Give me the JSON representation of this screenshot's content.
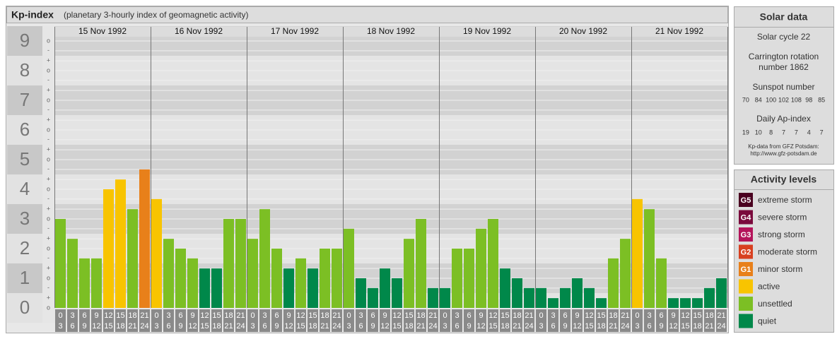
{
  "header": {
    "title": "Kp-index",
    "subtitle": "(planetary 3-hourly index of geomagnetic activity)"
  },
  "chart_data": {
    "type": "bar",
    "ylim": [
      -0.5,
      9.5
    ],
    "yticks": [
      0,
      1,
      2,
      3,
      4,
      5,
      6,
      7,
      8,
      9
    ],
    "minor_yticks": [
      {
        "value": 0,
        "label": "o"
      },
      {
        "value": 0.33,
        "label": "+"
      },
      {
        "value": 0.67,
        "label": "-"
      },
      {
        "value": 1,
        "label": "o"
      },
      {
        "value": 1.33,
        "label": "+"
      },
      {
        "value": 1.67,
        "label": "-"
      },
      {
        "value": 2,
        "label": "o"
      },
      {
        "value": 2.33,
        "label": "+"
      },
      {
        "value": 2.67,
        "label": "-"
      },
      {
        "value": 3,
        "label": "o"
      },
      {
        "value": 3.33,
        "label": "+"
      },
      {
        "value": 3.67,
        "label": "-"
      },
      {
        "value": 4,
        "label": "o"
      },
      {
        "value": 4.33,
        "label": "+"
      },
      {
        "value": 4.67,
        "label": "-"
      },
      {
        "value": 5,
        "label": "o"
      },
      {
        "value": 5.33,
        "label": "+"
      },
      {
        "value": 5.67,
        "label": "-"
      },
      {
        "value": 6,
        "label": "o"
      },
      {
        "value": 6.33,
        "label": "+"
      },
      {
        "value": 6.67,
        "label": "-"
      },
      {
        "value": 7,
        "label": "o"
      },
      {
        "value": 7.33,
        "label": "+"
      },
      {
        "value": 7.67,
        "label": "-"
      },
      {
        "value": 8,
        "label": "o"
      },
      {
        "value": 8.33,
        "label": "+"
      },
      {
        "value": 8.67,
        "label": "-"
      },
      {
        "value": 9,
        "label": "o"
      }
    ],
    "intervals": [
      [
        "0",
        "3"
      ],
      [
        "3",
        "6"
      ],
      [
        "6",
        "9"
      ],
      [
        "9",
        "12"
      ],
      [
        "12",
        "15"
      ],
      [
        "15",
        "18"
      ],
      [
        "18",
        "21"
      ],
      [
        "21",
        "24"
      ]
    ],
    "days": [
      {
        "date": "15 Nov 1992",
        "values": [
          3,
          2.33,
          1.67,
          1.67,
          4,
          4.33,
          3.33,
          4.67
        ],
        "colors": [
          "#7cbf24",
          "#7cbf24",
          "#7cbf24",
          "#7cbf24",
          "#f8c400",
          "#f8c400",
          "#7cbf24",
          "#e8801a"
        ]
      },
      {
        "date": "16 Nov 1992",
        "values": [
          3.67,
          2.33,
          2,
          1.67,
          1.33,
          1.33,
          3,
          3
        ],
        "colors": [
          "#f8c400",
          "#7cbf24",
          "#7cbf24",
          "#7cbf24",
          "#00884a",
          "#00884a",
          "#7cbf24",
          "#7cbf24"
        ]
      },
      {
        "date": "17 Nov 1992",
        "values": [
          2.33,
          3.33,
          2,
          1.33,
          1.67,
          1.33,
          2,
          2
        ],
        "colors": [
          "#7cbf24",
          "#7cbf24",
          "#7cbf24",
          "#00884a",
          "#7cbf24",
          "#00884a",
          "#7cbf24",
          "#7cbf24"
        ]
      },
      {
        "date": "18 Nov 1992",
        "values": [
          2.67,
          1,
          0.67,
          1.33,
          1,
          2.33,
          3,
          0.67
        ],
        "colors": [
          "#7cbf24",
          "#00884a",
          "#00884a",
          "#00884a",
          "#00884a",
          "#7cbf24",
          "#7cbf24",
          "#00884a"
        ]
      },
      {
        "date": "19 Nov 1992",
        "values": [
          0.67,
          2,
          2,
          2.67,
          3,
          1.33,
          1,
          0.67
        ],
        "colors": [
          "#00884a",
          "#7cbf24",
          "#7cbf24",
          "#7cbf24",
          "#7cbf24",
          "#00884a",
          "#00884a",
          "#00884a"
        ]
      },
      {
        "date": "20 Nov 1992",
        "values": [
          0.67,
          0.33,
          0.67,
          1,
          0.67,
          0.33,
          1.67,
          2.33
        ],
        "colors": [
          "#00884a",
          "#00884a",
          "#00884a",
          "#00884a",
          "#00884a",
          "#00884a",
          "#7cbf24",
          "#7cbf24"
        ]
      },
      {
        "date": "21 Nov 1992",
        "values": [
          3.67,
          3.33,
          1.67,
          0.33,
          0.33,
          0.33,
          0.67,
          1
        ],
        "colors": [
          "#f8c400",
          "#7cbf24",
          "#7cbf24",
          "#00884a",
          "#00884a",
          "#00884a",
          "#00884a",
          "#00884a"
        ]
      }
    ]
  },
  "solar_data": {
    "title": "Solar data",
    "solar_cycle": "Solar cycle 22",
    "carrington": [
      "Carrington rotation",
      "number 1862"
    ],
    "sunspot_title": "Sunspot number",
    "sunspot_numbers": [
      70,
      84,
      100,
      102,
      108,
      98,
      85
    ],
    "ap_title": "Daily Ap-index",
    "ap_values": [
      19,
      10,
      8,
      7,
      7,
      4,
      7
    ],
    "source": [
      "Kp-data from GFZ Potsdam:",
      "http://www.gfz-potsdam.de"
    ]
  },
  "activity_levels": {
    "title": "Activity levels",
    "levels": [
      {
        "badge": "G5",
        "name": "extreme storm",
        "color": "#4a0020"
      },
      {
        "badge": "G4",
        "name": "severe storm",
        "color": "#7a0a3c"
      },
      {
        "badge": "G3",
        "name": "strong storm",
        "color": "#b4145a"
      },
      {
        "badge": "G2",
        "name": "moderate storm",
        "color": "#d84020"
      },
      {
        "badge": "G1",
        "name": "minor storm",
        "color": "#e8801a"
      },
      {
        "badge": null,
        "name": "active",
        "color": "#f8c400"
      },
      {
        "badge": null,
        "name": "unsettled",
        "color": "#7cbf24"
      },
      {
        "badge": null,
        "name": "quiet",
        "color": "#00884a"
      }
    ]
  }
}
